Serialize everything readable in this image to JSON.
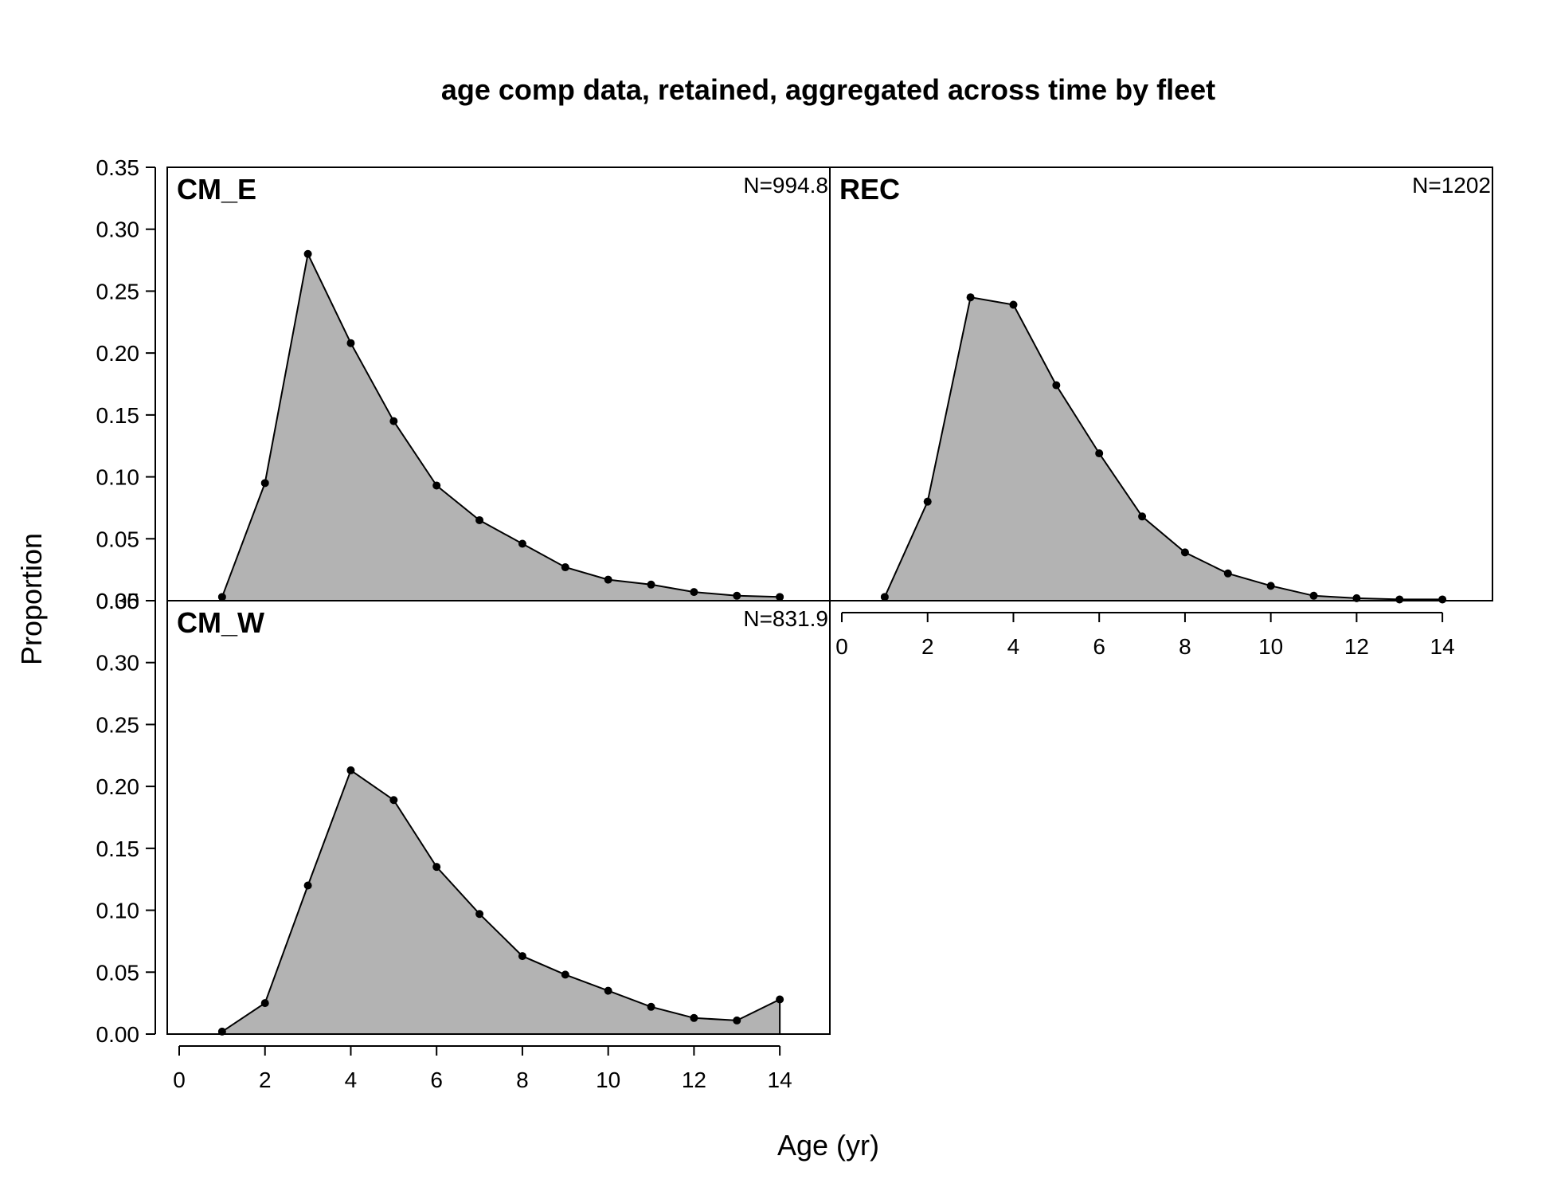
{
  "chart_data": {
    "type": "area",
    "title": "age comp data, retained, aggregated across time by fleet",
    "xlabel": "Age (yr)",
    "ylabel": "Proportion",
    "xlim": [
      0,
      15
    ],
    "ylim": [
      0,
      0.35
    ],
    "x_ticks": [
      "0",
      "2",
      "4",
      "6",
      "8",
      "10",
      "12",
      "14"
    ],
    "y_ticks": [
      "0.00",
      "0.05",
      "0.10",
      "0.15",
      "0.20",
      "0.25",
      "0.30",
      "0.35"
    ],
    "fill_color": "#b3b3b3",
    "line_color": "#000000",
    "panels": [
      {
        "name": "CM_E",
        "n_label": "N=994.8",
        "x": [
          1,
          2,
          3,
          4,
          5,
          6,
          7,
          8,
          9,
          10,
          11,
          12,
          13,
          14
        ],
        "y": [
          0.003,
          0.095,
          0.28,
          0.208,
          0.145,
          0.093,
          0.065,
          0.046,
          0.027,
          0.017,
          0.013,
          0.007,
          0.004,
          0.003
        ]
      },
      {
        "name": "REC",
        "n_label": "N=1202",
        "x": [
          1,
          2,
          3,
          4,
          5,
          6,
          7,
          8,
          9,
          10,
          11,
          12,
          13,
          14
        ],
        "y": [
          0.003,
          0.08,
          0.245,
          0.239,
          0.174,
          0.119,
          0.068,
          0.039,
          0.022,
          0.012,
          0.004,
          0.002,
          0.001,
          0.001
        ]
      },
      {
        "name": "CM_W",
        "n_label": "N=831.9",
        "x": [
          1,
          2,
          3,
          4,
          5,
          6,
          7,
          8,
          9,
          10,
          11,
          12,
          13,
          14
        ],
        "y": [
          0.002,
          0.025,
          0.12,
          0.213,
          0.189,
          0.135,
          0.097,
          0.063,
          0.048,
          0.035,
          0.022,
          0.013,
          0.011,
          0.028
        ]
      }
    ]
  }
}
